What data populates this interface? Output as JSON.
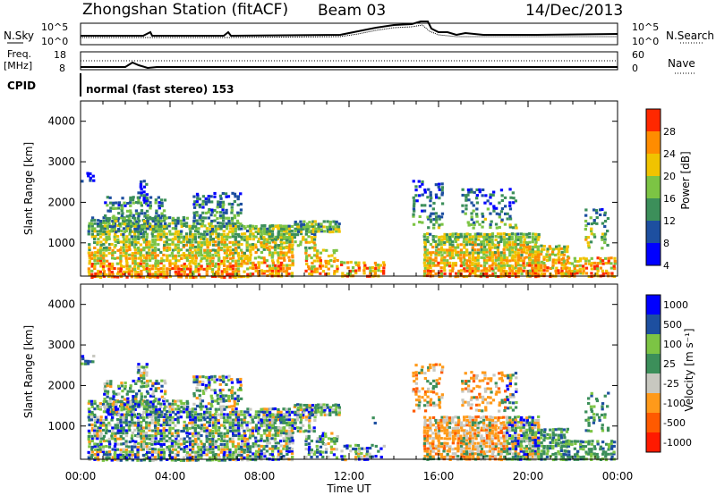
{
  "header": {
    "station": "Zhongshan Station (fitACF)",
    "beam": "Beam 03",
    "date": "14/Dec/2013"
  },
  "top_panels": {
    "nsky_label": "N.Sky",
    "nsky_ticks": [
      "10^5",
      "10^0"
    ],
    "nsearch_label": "N.Search",
    "nsearch_ticks": [
      "10^5",
      "10^0"
    ],
    "freq_label_1": "Freq.",
    "freq_label_2": "[MHz]",
    "freq_ticks": [
      "18",
      "8"
    ],
    "nave_label": "Nave",
    "nave_ticks": [
      "60",
      "0"
    ],
    "cpid_label": "CPID",
    "cpid_text": "normal (fast stereo) 153"
  },
  "chart_data": [
    {
      "type": "heatmap",
      "name": "power",
      "ylabel": "Slant Range [km]",
      "xlabel": "Time UT",
      "yticks": [
        "4000",
        "3000",
        "2000",
        "1000"
      ],
      "xticks": [
        "00:00",
        "04:00",
        "08:00",
        "12:00",
        "16:00",
        "20:00",
        "00:00"
      ],
      "ylim": [
        180,
        4500
      ],
      "colorbar_label": "Power [dB]",
      "colorbar_ticks": [
        "28",
        "24",
        "20",
        "16",
        "12",
        "8",
        "4"
      ],
      "colors": [
        "#0000ff",
        "#1d4fa0",
        "#3c8f5a",
        "#7cc444",
        "#f0c300",
        "#ff8c00",
        "#ff2800"
      ]
    },
    {
      "type": "heatmap",
      "name": "velocity",
      "ylabel": "Slant Range [km]",
      "xlabel": "Time UT",
      "yticks": [
        "4000",
        "3000",
        "2000",
        "1000"
      ],
      "xticks": [
        "00:00",
        "04:00",
        "08:00",
        "12:00",
        "16:00",
        "20:00",
        "00:00"
      ],
      "ylim": [
        180,
        4500
      ],
      "colorbar_label": "Velocity [m s⁻¹]",
      "colorbar_ticks": [
        "1000",
        "500",
        "100",
        "25",
        "-25",
        "-100",
        "-500",
        "-1000"
      ],
      "colors": [
        "#ff1a00",
        "#ff5a00",
        "#ff9a1a",
        "#c8c8c0",
        "#3c8f5a",
        "#7cc444",
        "#1d4fa0",
        "#0000ff"
      ]
    }
  ]
}
